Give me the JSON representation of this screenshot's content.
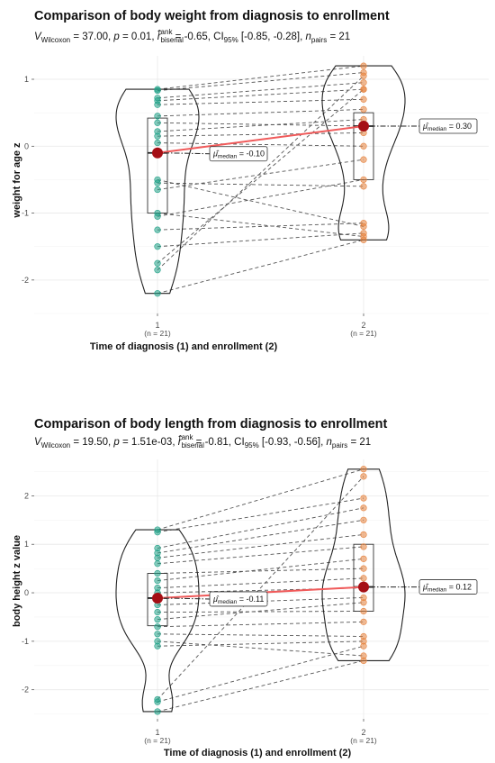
{
  "colors": {
    "group1": "#1fa187",
    "group2": "#e6823d",
    "median_point": "#a50f15",
    "median_line": "#f05a5a"
  },
  "chart_data": [
    {
      "type": "violin",
      "title": "Comparison of body weight from diagnosis to enrollment",
      "stat": {
        "v": "37.00",
        "p": "0.01",
        "r": "-0.65",
        "ci": "[-0.85, -0.28]",
        "n": "21"
      },
      "xlabel": "Time of diagnosis (1) and enrollment (2)",
      "ylabel": "weight for age z",
      "categories": [
        "1",
        "2"
      ],
      "group_n": [
        "(n = 21)",
        "(n = 21)"
      ],
      "ylim": [
        -2.5,
        1.35
      ],
      "yticks": [
        -2,
        -1,
        0,
        1
      ],
      "medians": [
        -0.1,
        0.3
      ],
      "median_labels": [
        "= -0.10",
        "= 0.30"
      ],
      "box": [
        {
          "q1": -1.0,
          "median": -0.1,
          "q3": 0.42
        },
        {
          "q1": -0.5,
          "median": 0.3,
          "q3": 0.5
        }
      ],
      "pairs": [
        [
          0.85,
          1.2
        ],
        [
          0.83,
          1.1
        ],
        [
          0.72,
          0.95
        ],
        [
          0.68,
          0.85
        ],
        [
          0.62,
          0.7
        ],
        [
          0.45,
          0.55
        ],
        [
          0.35,
          0.3
        ],
        [
          0.22,
          0.4
        ],
        [
          0.15,
          0.2
        ],
        [
          0.05,
          0.0
        ],
        [
          -0.1,
          0.3
        ],
        [
          -0.5,
          -1.2
        ],
        [
          -0.55,
          -0.6
        ],
        [
          -0.65,
          -0.2
        ],
        [
          -1.0,
          -1.35
        ],
        [
          -1.05,
          -0.5
        ],
        [
          -1.25,
          -1.15
        ],
        [
          -1.5,
          -1.3
        ],
        [
          -1.75,
          0.85
        ],
        [
          -1.85,
          1.05
        ],
        [
          -2.2,
          -1.4
        ]
      ]
    },
    {
      "type": "violin",
      "title": "Comparison of body length from diagnosis to enrollment",
      "stat": {
        "v": "19.50",
        "p": "1.51e-03",
        "r": "-0.81",
        "ci": "[-0.93, -0.56]",
        "n": "21"
      },
      "xlabel": "Time of diagnosis (1) and enrollment (2)",
      "ylabel": "body height z value",
      "categories": [
        "1",
        "2"
      ],
      "group_n": [
        "(n = 21)",
        "(n = 21)"
      ],
      "ylim": [
        -2.6,
        2.75
      ],
      "yticks": [
        -2,
        -1,
        0,
        1,
        2
      ],
      "medians": [
        -0.11,
        0.12
      ],
      "median_labels": [
        "= -0.11",
        "= 0.12"
      ],
      "box": [
        {
          "q1": -0.68,
          "median": -0.11,
          "q3": 0.4
        },
        {
          "q1": -0.38,
          "median": 0.12,
          "q3": 1.0
        }
      ],
      "pairs": [
        [
          1.3,
          2.55
        ],
        [
          1.25,
          1.95
        ],
        [
          0.92,
          1.75
        ],
        [
          0.82,
          1.5
        ],
        [
          0.72,
          1.2
        ],
        [
          0.6,
          0.95
        ],
        [
          0.4,
          0.5
        ],
        [
          0.25,
          0.7
        ],
        [
          0.1,
          0.3
        ],
        [
          0.0,
          0.1
        ],
        [
          -0.11,
          0.12
        ],
        [
          -0.25,
          -0.1
        ],
        [
          -0.4,
          -0.38
        ],
        [
          -0.55,
          -0.2
        ],
        [
          -0.7,
          -0.6
        ],
        [
          -0.85,
          -0.9
        ],
        [
          -1.0,
          -1.3
        ],
        [
          -1.1,
          -1.0
        ],
        [
          -2.2,
          2.4
        ],
        [
          -2.25,
          -1.1
        ],
        [
          -2.45,
          -1.4
        ]
      ]
    }
  ]
}
